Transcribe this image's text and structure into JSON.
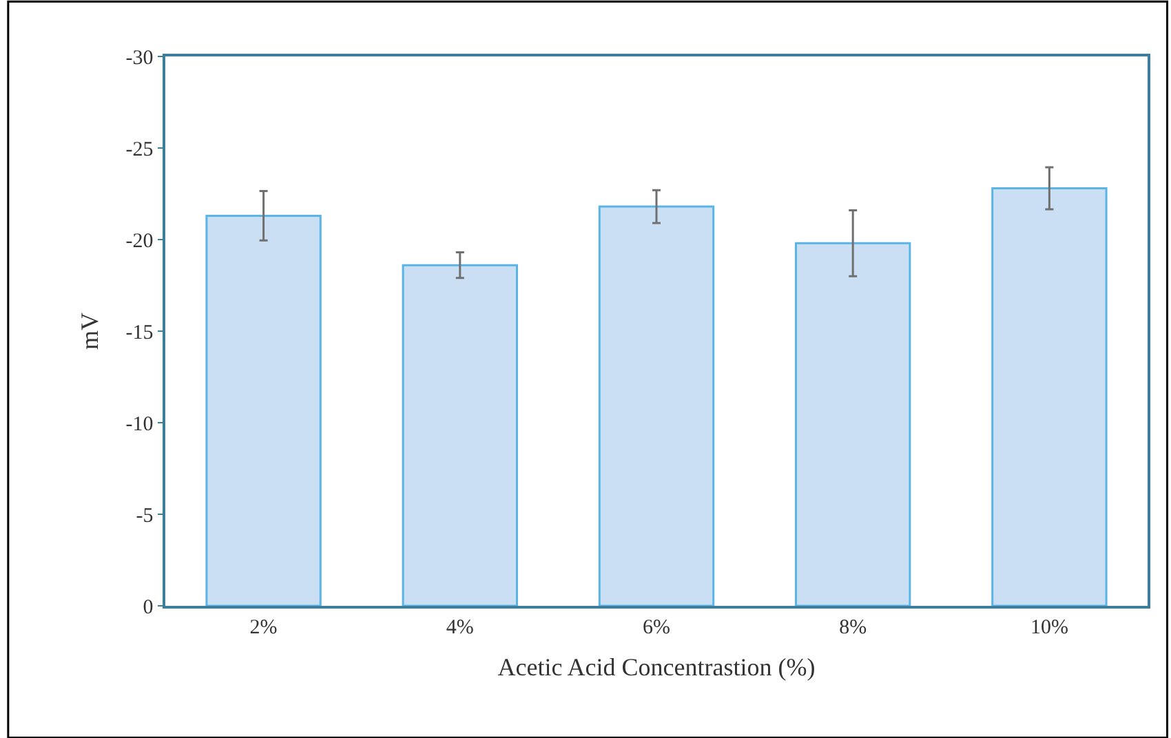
{
  "chart_data": {
    "type": "bar",
    "xlabel": "Acetic Acid Concentrastion (%)",
    "ylabel": "mV",
    "categories": [
      "2%",
      "4%",
      "6%",
      "8%",
      "10%"
    ],
    "values": [
      -21.3,
      -18.6,
      -21.8,
      -19.8,
      -22.8
    ],
    "errors": [
      1.35,
      0.7,
      0.9,
      1.8,
      1.15
    ],
    "color": "#cadff4",
    "ylim": [
      0,
      -30
    ],
    "yticks": [
      0,
      -5,
      -10,
      -15,
      -20,
      -25,
      -30
    ],
    "legend": false
  }
}
